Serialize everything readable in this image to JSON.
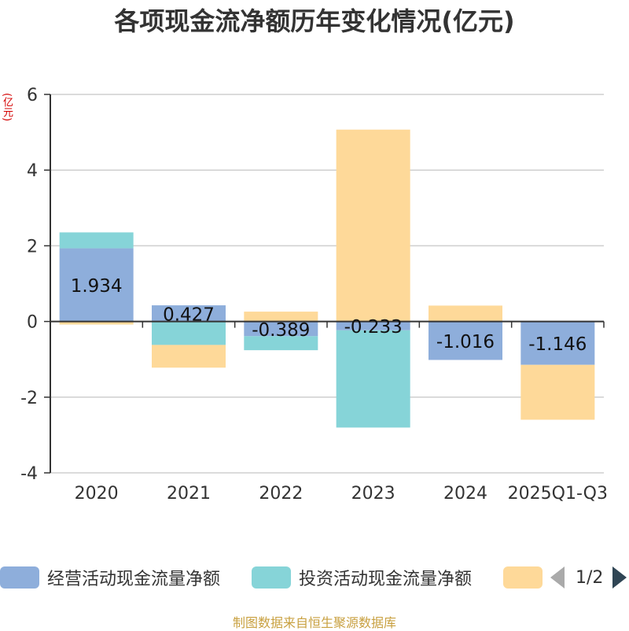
{
  "title": "各项现金流净额历年变化情况(亿元)",
  "unit_label": "(亿元)",
  "legend": {
    "items": [
      {
        "label": "经营活动现金流量净额",
        "color": "#8eaedb"
      },
      {
        "label": "投资活动现金流量净额",
        "color": "#86d4d8"
      },
      {
        "label": "",
        "color": "#fed999"
      }
    ],
    "page_text": "1/2"
  },
  "source": "制图数据来自恒生聚源数据库",
  "chart_data": {
    "type": "bar",
    "stacked": true,
    "categories": [
      "2020",
      "2021",
      "2022",
      "2023",
      "2024",
      "2025Q1-Q3"
    ],
    "series": [
      {
        "name": "经营活动现金流量净额",
        "color": "#8eaedb",
        "values": [
          1.934,
          0.427,
          -0.389,
          -0.233,
          -1.016,
          -1.146
        ]
      },
      {
        "name": "投资活动现金流量净额",
        "color": "#86d4d8",
        "values": [
          0.42,
          -0.62,
          -0.37,
          -2.57,
          0,
          0
        ]
      },
      {
        "color": "#fed999",
        "values": [
          -0.08,
          -0.6,
          0.26,
          5.07,
          0.42,
          -1.45
        ]
      }
    ],
    "data_labels": [
      "1.934",
      "0.427",
      "-0.389",
      "-0.233",
      "-1.016",
      "-1.146"
    ],
    "y_ticks": [
      "6",
      "4",
      "2",
      "0",
      "-2",
      "-4"
    ],
    "ylim": [
      -4,
      6
    ],
    "grid": true,
    "legend_position": "bottom"
  }
}
